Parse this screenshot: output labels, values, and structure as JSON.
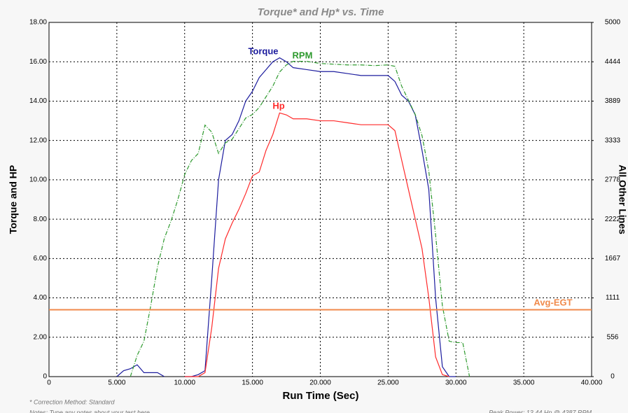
{
  "chart_data": {
    "type": "line",
    "title": "Torque* and Hp* vs. Time",
    "x_label": "Run Time (Sec)",
    "y_label": "Torque and HP",
    "y2_label": "All Other Lines",
    "xlim": [
      0,
      40
    ],
    "xticks": [
      0,
      {
        "value": 5,
        "label": "5.000"
      },
      {
        "value": 10,
        "label": "10.000"
      },
      {
        "value": 15,
        "label": "15.000"
      },
      {
        "value": 20,
        "label": "20.000"
      },
      {
        "value": 25,
        "label": "25.000"
      },
      {
        "value": 30,
        "label": "30.000"
      },
      {
        "value": 35,
        "label": "35.000"
      },
      {
        "value": 40,
        "label": "40.000"
      }
    ],
    "ylim": [
      0,
      18
    ],
    "yticks": [
      {
        "value": 0,
        "label": "0"
      },
      {
        "value": 2,
        "label": "2.00"
      },
      {
        "value": 4,
        "label": "4.00"
      },
      {
        "value": 6,
        "label": "6.00"
      },
      {
        "value": 8,
        "label": "8.00"
      },
      {
        "value": 10,
        "label": "10.00"
      },
      {
        "value": 12,
        "label": "12.00"
      },
      {
        "value": 14,
        "label": "14.00"
      },
      {
        "value": 16,
        "label": "16.00"
      },
      {
        "value": 18,
        "label": "18.00"
      }
    ],
    "y2lim": [
      0,
      5000
    ],
    "y2ticks": [
      0,
      556,
      1111,
      1667,
      2222,
      2778,
      3333,
      3889,
      4444,
      5000
    ],
    "grid": true,
    "x": [
      5,
      5.5,
      6,
      6.5,
      7,
      7.5,
      8,
      8.5,
      9,
      9.5,
      10,
      10.5,
      11,
      11.5,
      12,
      12.5,
      13,
      13.5,
      14,
      14.5,
      15,
      15.5,
      16,
      16.5,
      17,
      17.5,
      18,
      19,
      20,
      21,
      22,
      23,
      24,
      25,
      25.5,
      26,
      26.5,
      27,
      27.5,
      28,
      28.5,
      29,
      29.5,
      30,
      30.5,
      31
    ],
    "series": [
      {
        "name": "Torque",
        "color": "#1c1c9e",
        "values": [
          0,
          0.3,
          0.4,
          0.6,
          0.2,
          0.2,
          0.2,
          0,
          null,
          null,
          0,
          0,
          0.1,
          0.3,
          5,
          10,
          12,
          12.3,
          13,
          14,
          14.5,
          15.2,
          15.6,
          16,
          16.2,
          16,
          15.7,
          15.6,
          15.5,
          15.5,
          15.4,
          15.3,
          15.3,
          15.3,
          15,
          14.3,
          14,
          13.3,
          11.5,
          9.5,
          4,
          0.5,
          0,
          0,
          null,
          null
        ]
      },
      {
        "name": "Hp",
        "color": "#ff2a2a",
        "values": [
          null,
          null,
          null,
          null,
          null,
          null,
          null,
          null,
          null,
          null,
          0,
          0,
          0,
          0.2,
          2.5,
          5.5,
          7,
          7.8,
          8.5,
          9.3,
          10.2,
          10.4,
          11.5,
          12.3,
          13.4,
          13.3,
          13.1,
          13.1,
          13,
          13,
          12.9,
          12.8,
          12.8,
          12.8,
          12.5,
          11,
          9.5,
          8,
          6.5,
          4,
          1,
          0.1,
          0,
          null,
          null,
          null
        ]
      },
      {
        "name": "RPM",
        "color": "#2e9a2e",
        "axis": "y2",
        "dash": true,
        "values": [
          null,
          null,
          0,
          300,
          500,
          1000,
          1550,
          1950,
          2200,
          2500,
          2850,
          3050,
          3150,
          3550,
          3450,
          3150,
          3300,
          3350,
          3500,
          3650,
          3700,
          3800,
          3950,
          4100,
          4300,
          4400,
          4450,
          4450,
          4420,
          4410,
          4400,
          4400,
          4390,
          4400,
          4380,
          4100,
          3900,
          3700,
          3400,
          2900,
          2000,
          1000,
          500,
          480,
          480,
          0
        ]
      },
      {
        "name": "Avg-EGT",
        "color": "#f08a4b",
        "axis": "y2",
        "x": [
          0,
          40
        ],
        "values": [
          944,
          944
        ]
      }
    ],
    "notes": [
      "* Correction Method: Standard",
      "Notes: Type any notes about your test here",
      "Peak Power: 13.44 Hp @ 4387 RPM"
    ]
  }
}
